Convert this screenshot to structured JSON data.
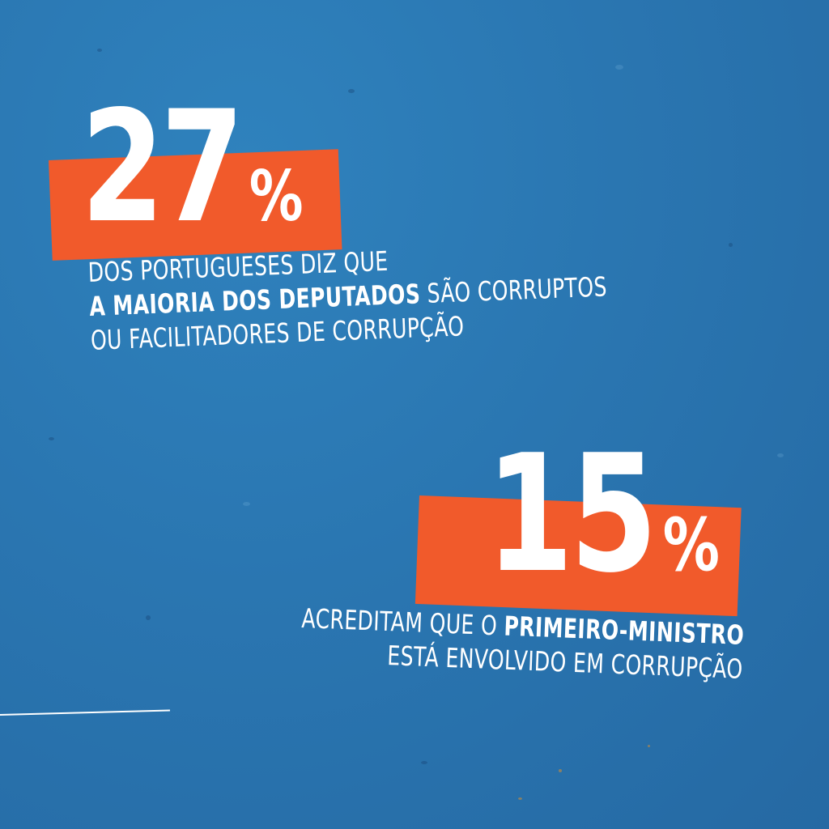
{
  "stat1": {
    "value": "27",
    "unit": "%",
    "line1": "DOS PORTUGUESES DIZ QUE",
    "line2_bold": "A MAIORIA DOS DEPUTADOS",
    "line2_rest": " SÃO CORRUPTOS",
    "line3": "OU FACILITADORES DE CORRUPÇÃO"
  },
  "stat2": {
    "value": "15",
    "unit": "%",
    "line1_pre": "ACREDITAM QUE O ",
    "line1_bold": "PRIMEIRO-MINISTRO",
    "line2": "ESTÁ ENVOLVIDO EM CORRUPÇÃO"
  },
  "colors": {
    "background": "#2a76b1",
    "accent": "#f15a2b",
    "text": "#ffffff"
  }
}
